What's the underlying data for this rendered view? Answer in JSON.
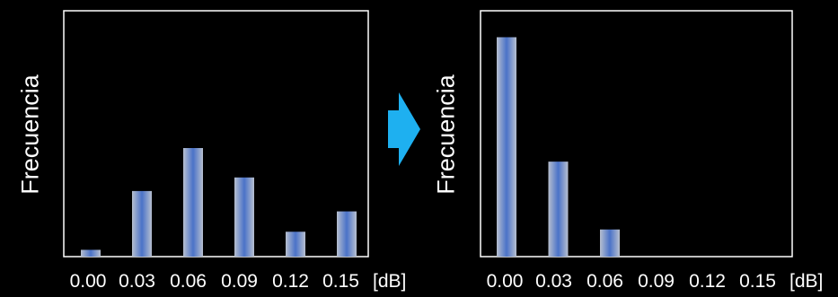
{
  "chart_data": [
    {
      "type": "bar",
      "ylabel": "Frecuencia",
      "categories": [
        "0.00",
        "0.03",
        "0.06",
        "0.09",
        "0.12",
        "0.15"
      ],
      "x_unit": "[dB]",
      "values": [
        3,
        29,
        48,
        35,
        11,
        20
      ],
      "ylim": [
        0,
        100
      ]
    },
    {
      "type": "bar",
      "ylabel": "Frecuencia",
      "categories": [
        "0.00",
        "0.03",
        "0.06",
        "0.09",
        "0.12",
        "0.15"
      ],
      "x_unit": "[dB]",
      "values": [
        97,
        42,
        12,
        0,
        0,
        0
      ],
      "ylim": [
        0,
        100
      ]
    }
  ],
  "arrow": {
    "color": "#1eb0f0",
    "icon": "right-arrow-icon"
  },
  "colors": {
    "frame": "#ffffff",
    "bar_edge": "#b7bfcf",
    "bar_center": "#4a72c8"
  }
}
